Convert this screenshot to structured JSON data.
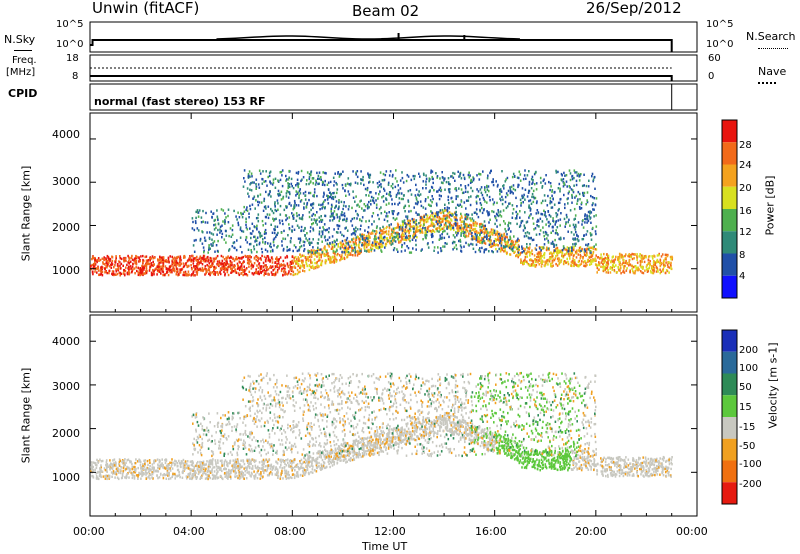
{
  "header": {
    "station": "Unwin (fitACF)",
    "beam": "Beam 02",
    "date": "26/Sep/2012"
  },
  "strip_panels": {
    "nsky": {
      "label": "N.Sky",
      "ticks": [
        "10^5",
        "10^0"
      ]
    },
    "nsearch": {
      "label": "N.Search",
      "ticks": [
        "10^5",
        "10^0"
      ]
    },
    "freq": {
      "label_line1": "Freq.",
      "label_line2": "[MHz]",
      "ticks": [
        "18",
        "8"
      ]
    },
    "nave": {
      "label": "Nave",
      "ticks": [
        "60",
        "0"
      ]
    },
    "cpid": {
      "label": "CPID",
      "value": "normal (fast stereo) 153 RF"
    }
  },
  "chart_data": [
    {
      "type": "heatmap",
      "name": "power",
      "ylabel": "Slant Range [km]",
      "yticks": [
        "4000",
        "3000",
        "2000",
        "1000"
      ],
      "ylim": [
        0,
        4600
      ],
      "colorbar_label": "Power [dB]",
      "colorbar_ticks": [
        "28",
        "24",
        "20",
        "16",
        "12",
        "8",
        "4"
      ],
      "colors": [
        "#1010ff",
        "#2050a8",
        "#2f8a78",
        "#4fb04f",
        "#d8e020",
        "#f4a21e",
        "#f26a1a",
        "#e8140e"
      ]
    },
    {
      "type": "heatmap",
      "name": "velocity",
      "ylabel": "Slant Range [km]",
      "yticks": [
        "4000",
        "3000",
        "2000",
        "1000"
      ],
      "ylim": [
        0,
        4600
      ],
      "colorbar_label": "Velocity [m s-1]",
      "colorbar_ticks": [
        "200",
        "100",
        "50",
        "15",
        "-15",
        "-50",
        "-100",
        "-200"
      ],
      "colors": [
        "#1a2fb8",
        "#2a6a9a",
        "#2e8b57",
        "#5cc83c",
        "#c8c8c0",
        "#f0a020",
        "#f07010",
        "#e61a10"
      ]
    }
  ],
  "xaxis": {
    "label": "Time UT",
    "ticks": [
      "00:00",
      "04:00",
      "08:00",
      "12:00",
      "16:00",
      "20:00",
      "00:00"
    ]
  }
}
